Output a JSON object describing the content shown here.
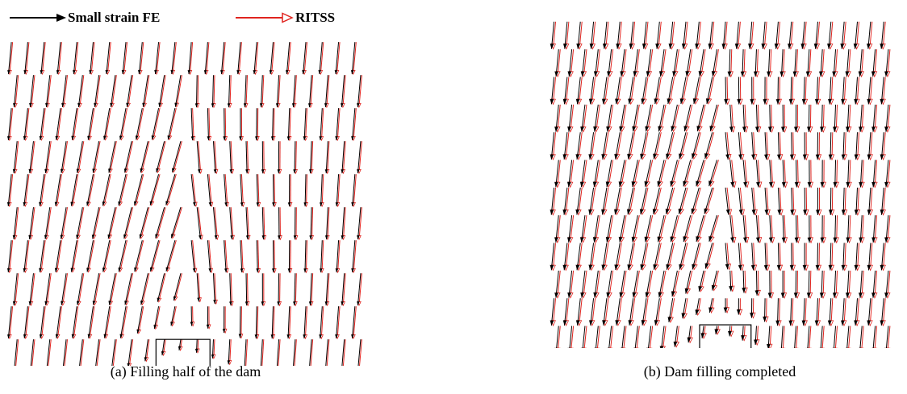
{
  "legend": {
    "fe_label": "Small strain FE",
    "ritss_label": "RITSS",
    "fe_color": "#000000",
    "ritss_color": "#e0241f"
  },
  "panels": [
    {
      "id": "a",
      "caption": "(a) Filling half of the dam"
    },
    {
      "id": "b",
      "caption": "(b) Dam filling completed"
    }
  ]
}
